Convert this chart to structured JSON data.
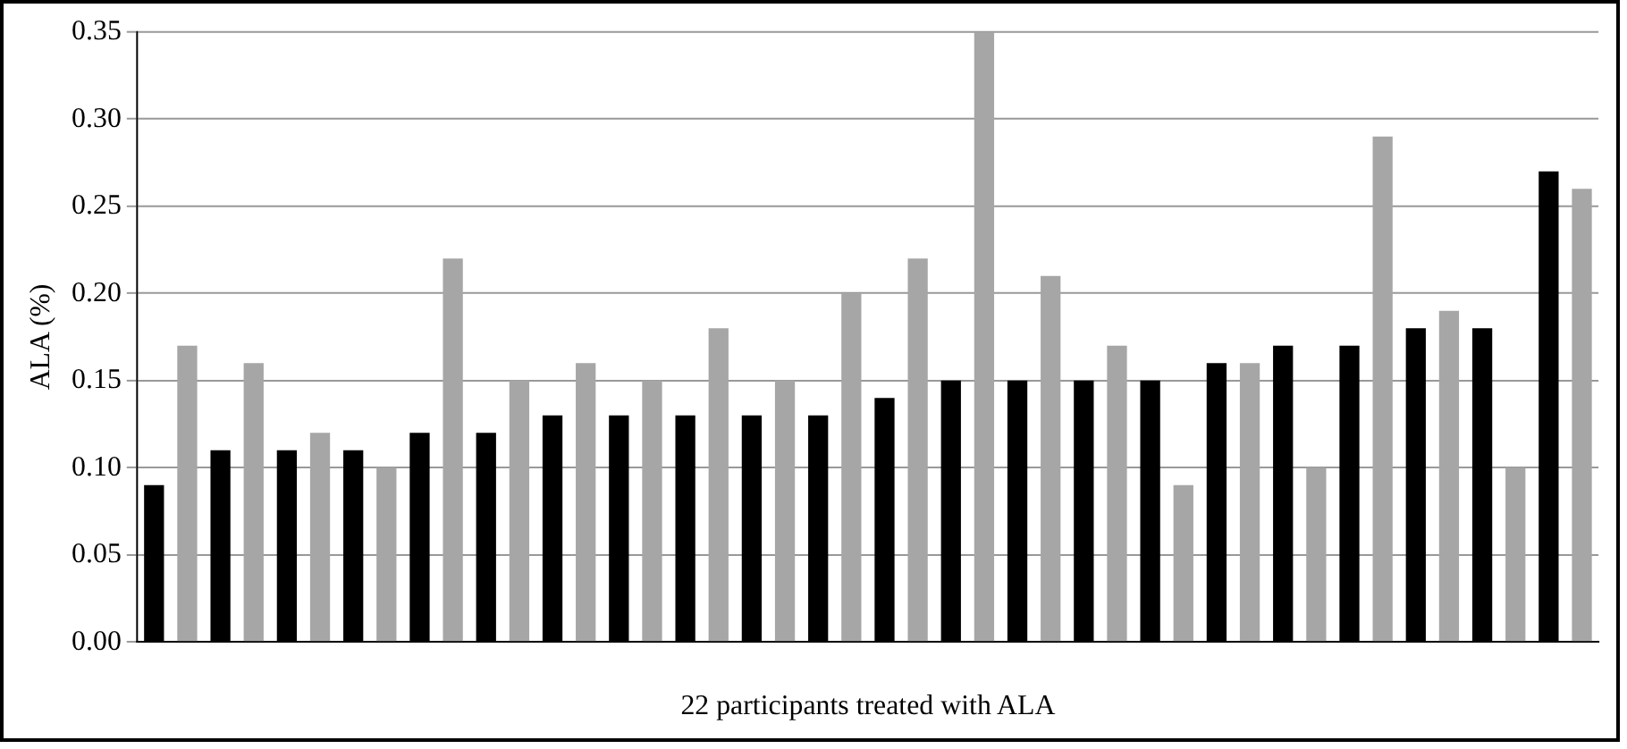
{
  "chart_data": {
    "type": "bar",
    "xlabel": "22 participants treated with ALA",
    "ylabel": "ALA (%)",
    "categories": [
      null,
      null,
      null,
      null,
      null,
      null,
      null,
      null,
      null,
      null,
      null,
      null,
      null,
      null,
      null,
      null,
      null,
      null,
      null,
      null,
      null,
      null
    ],
    "series": [
      {
        "color": "#000000",
        "values": [
          0.09,
          0.11,
          0.11,
          0.11,
          0.12,
          0.12,
          0.13,
          0.13,
          0.13,
          0.13,
          0.13,
          0.14,
          0.15,
          0.15,
          0.15,
          0.15,
          0.16,
          0.17,
          0.17,
          0.18,
          0.18,
          0.27
        ]
      },
      {
        "color": "#a6a6a6",
        "values": [
          0.17,
          0.16,
          0.12,
          0.1,
          0.22,
          0.15,
          0.16,
          0.15,
          0.18,
          0.15,
          0.2,
          0.22,
          0.35,
          0.21,
          0.17,
          0.09,
          0.16,
          0.1,
          0.29,
          0.19,
          0.1,
          0.26
        ]
      }
    ],
    "ylim": [
      0,
      0.35
    ],
    "yticks": [
      {
        "value": 0,
        "label": "0.00"
      },
      {
        "value": 0.05,
        "label": "0.05"
      },
      {
        "value": 0.1,
        "label": "0.10"
      },
      {
        "value": 0.15,
        "label": "0.15"
      },
      {
        "value": 0.2,
        "label": "0.20"
      },
      {
        "value": 0.25,
        "label": "0.25"
      },
      {
        "value": 0.3,
        "label": "0.30"
      },
      {
        "value": 0.35,
        "label": "0.35"
      }
    ],
    "grid": "y",
    "legend": false
  }
}
